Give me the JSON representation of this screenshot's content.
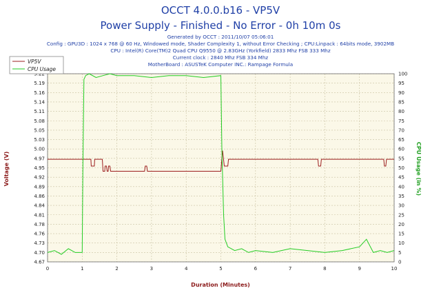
{
  "header": {
    "title_line1": "OCCT 4.0.0.b16 - VP5V",
    "title_line2": "Power Supply - Finished - No Error - 0h 10m 0s",
    "info_lines": [
      "Generated by OCCT : 2011/10/07 05:06:01",
      "Config : GPU3D : 1024 x 768 @ 60 Hz, Windowed mode, Shader Complexity 1, without Error Checking ; CPU:Linpack : 64bits mode, 3902MB",
      "CPU : Intel(R) Core(TM)2 Quad CPU Q9550 @ 2.83GHz (Yorkfield) 2833 Mhz FSB 333 Mhz",
      "Current clock : 2840 Mhz FSB 334 Mhz",
      "MotherBoard : ASUSTeK Computer INC.: Rampage Formula"
    ]
  },
  "chart_data": {
    "type": "line",
    "xlabel": "Duration (Minutes)",
    "ylabel": "Voltage (V)",
    "y2label": "CPU Usage (in %)",
    "xlim": [
      0,
      10
    ],
    "ylim": [
      4.67,
      5.22
    ],
    "y2lim": [
      0,
      100
    ],
    "grid": true,
    "legend_position": "top-left",
    "x_ticks": [
      "0",
      "1",
      "2",
      "3",
      "4",
      "5",
      "6",
      "7",
      "8",
      "9",
      "10"
    ],
    "y_ticks": [
      "4.67",
      "4.70",
      "4.73",
      "4.76",
      "4.78",
      "4.81",
      "4.84",
      "4.86",
      "4.89",
      "4.92",
      "4.95",
      "4.97",
      "5.00",
      "5.03",
      "5.05",
      "5.08",
      "5.11",
      "5.14",
      "5.16",
      "5.19",
      "5.22"
    ],
    "y2_ticks": [
      "0",
      "5",
      "10",
      "15",
      "20",
      "25",
      "30",
      "35",
      "40",
      "45",
      "50",
      "55",
      "60",
      "65",
      "70",
      "75",
      "80",
      "85",
      "90",
      "95",
      "100"
    ],
    "series": [
      {
        "name": "VP5V",
        "color": "#9b1c1c",
        "axis": "left",
        "x": [
          0,
          1.25,
          1.26,
          1.35,
          1.36,
          1.58,
          1.6,
          1.65,
          1.66,
          1.7,
          1.72,
          1.75,
          1.76,
          1.8,
          1.82,
          1.88,
          1.9,
          2.8,
          2.82,
          2.86,
          2.88,
          5.0,
          5.05,
          5.1,
          5.2,
          5.22,
          7.8,
          7.82,
          7.88,
          7.9,
          9.7,
          9.72,
          9.76,
          9.78,
          10.0
        ],
        "values": [
          4.97,
          4.97,
          4.95,
          4.95,
          4.97,
          4.97,
          4.935,
          4.935,
          4.95,
          4.95,
          4.935,
          4.935,
          4.95,
          4.95,
          4.935,
          4.935,
          4.935,
          4.935,
          4.95,
          4.95,
          4.935,
          4.935,
          4.995,
          4.95,
          4.95,
          4.97,
          4.97,
          4.95,
          4.95,
          4.97,
          4.97,
          4.95,
          4.95,
          4.97,
          4.97
        ]
      },
      {
        "name": "CPU Usage",
        "color": "#22cc22",
        "axis": "right",
        "x": [
          0,
          0.2,
          0.4,
          0.6,
          0.8,
          1.0,
          1.02,
          1.05,
          1.1,
          1.2,
          1.4,
          1.6,
          1.8,
          2.0,
          2.5,
          3.0,
          3.5,
          4.0,
          4.5,
          5.0,
          5.03,
          5.08,
          5.12,
          5.2,
          5.4,
          5.6,
          5.8,
          6.0,
          6.5,
          7.0,
          7.5,
          8.0,
          8.5,
          9.0,
          9.2,
          9.4,
          9.6,
          9.8,
          10.0
        ],
        "values": [
          5,
          6,
          4,
          7,
          5,
          5,
          50,
          97,
          99,
          100,
          98,
          99,
          100,
          99,
          99,
          98,
          99,
          99,
          98,
          99,
          60,
          25,
          12,
          8,
          6,
          7,
          5,
          6,
          5,
          7,
          6,
          5,
          6,
          8,
          12,
          5,
          6,
          5,
          6
        ]
      }
    ]
  }
}
